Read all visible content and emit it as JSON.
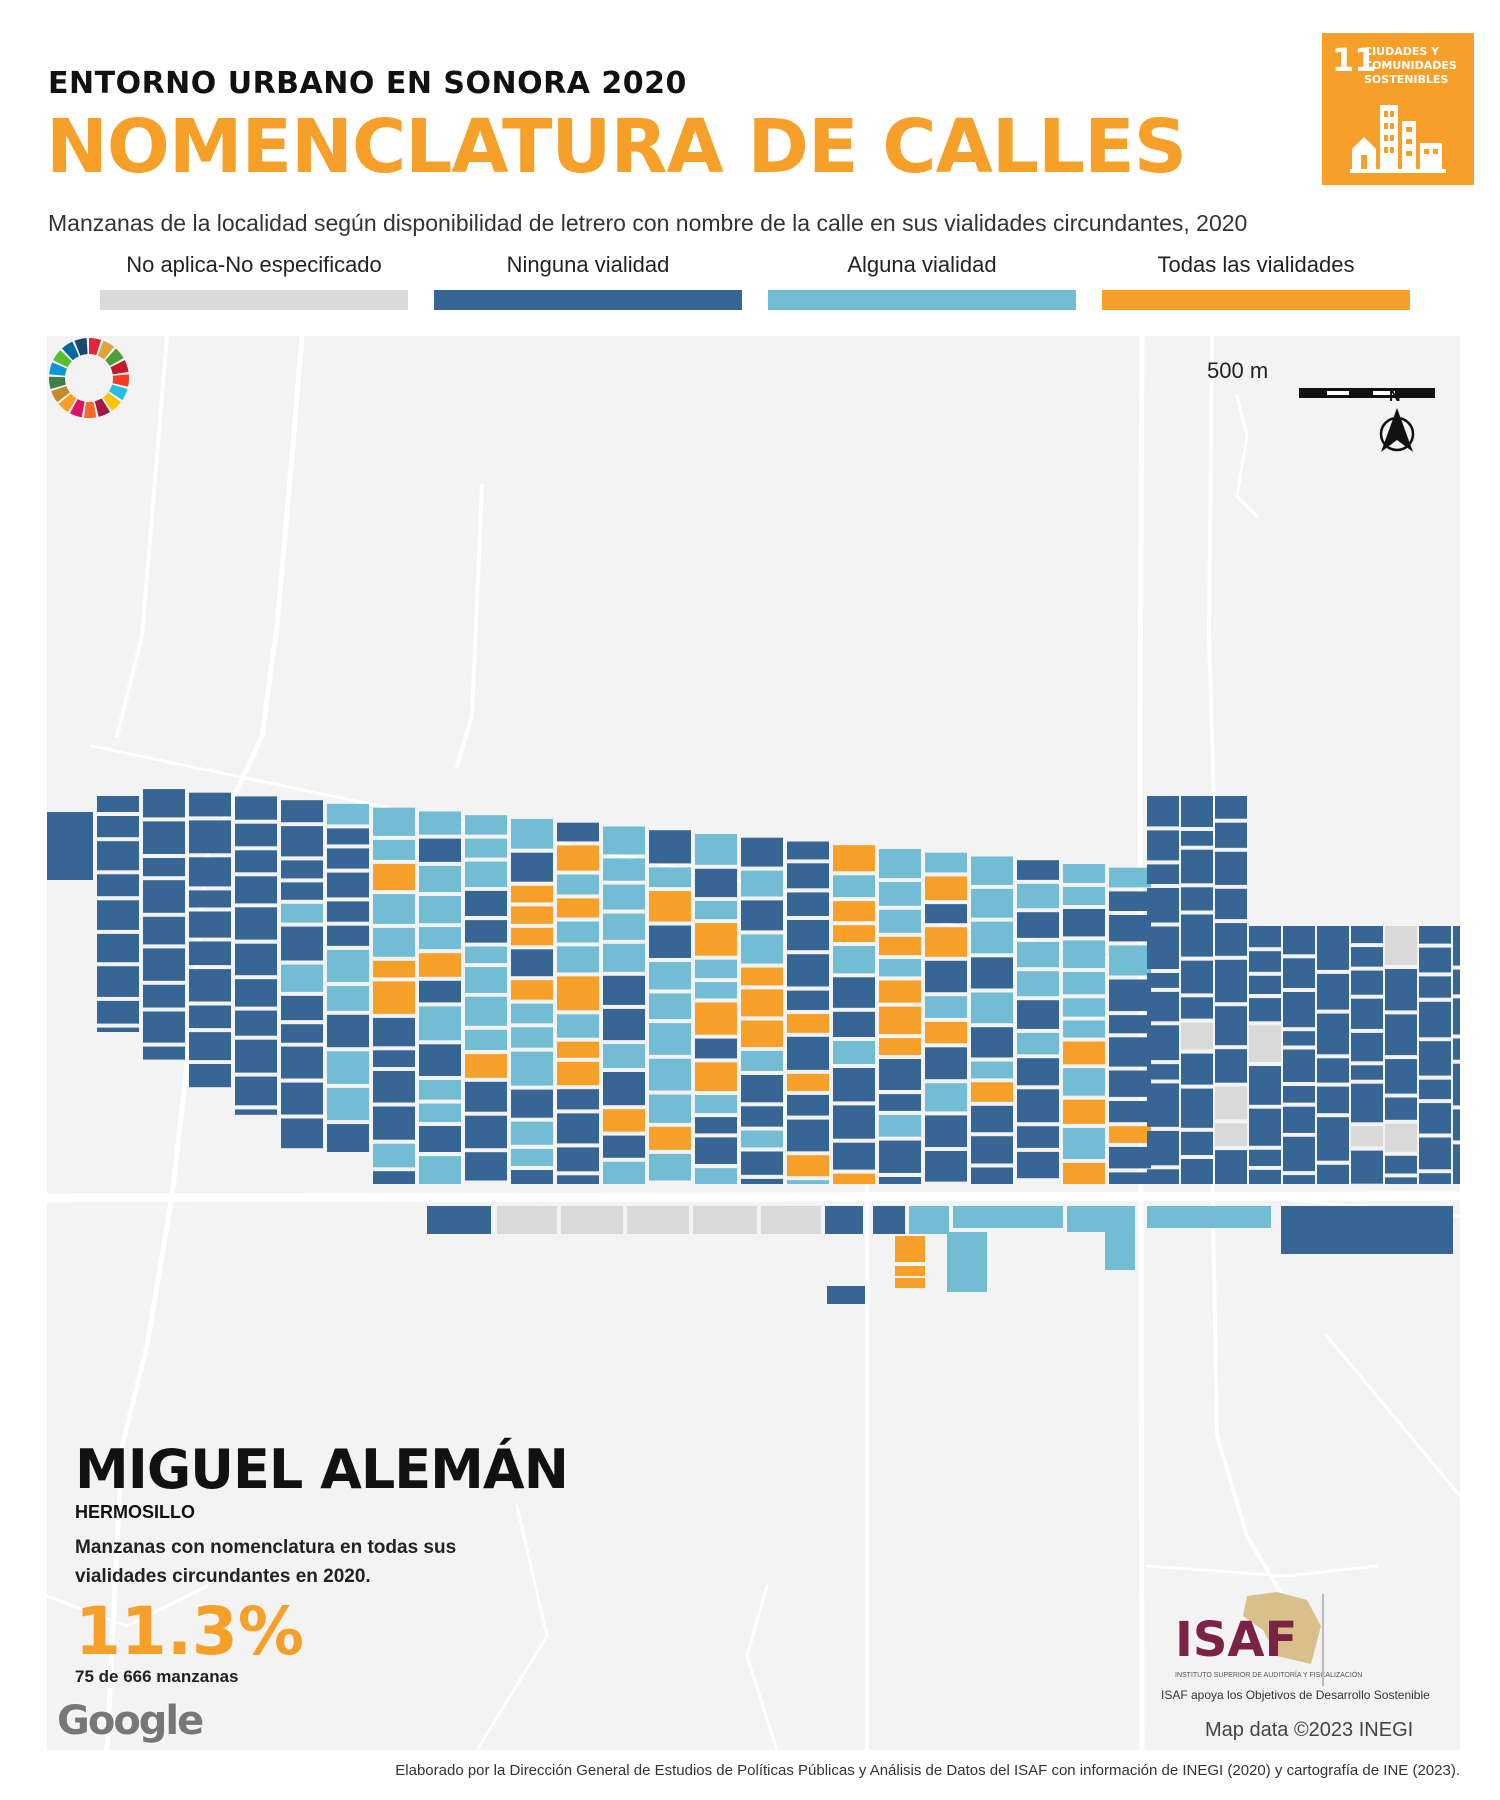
{
  "header": {
    "supertitle": "ENTORNO URBANO EN SONORA 2020",
    "title": "NOMENCLATURA DE CALLES",
    "subtitle": "Manzanas de la localidad según disponibilidad de letrero con nombre de la calle en sus vialidades circundantes, 2020"
  },
  "sdg_badge": {
    "number": "11",
    "text": "CIUDADES Y COMUNIDADES SOSTENIBLES",
    "color": "#f6a02a"
  },
  "legend": [
    {
      "label": "No aplica-No especificado",
      "color": "#d9d9d9"
    },
    {
      "label": "Ninguna vialidad",
      "color": "#376695"
    },
    {
      "label": "Alguna vialidad",
      "color": "#72bcd4"
    },
    {
      "label": "Todas las vialidades",
      "color": "#f6a02a"
    }
  ],
  "map": {
    "scale_label": "500 m",
    "north_label": "N",
    "attribution": "Map data ©2023 INEGI",
    "provider_logo": "Google",
    "colors": {
      "background": "#f3f3f3",
      "road": "#ffffff"
    }
  },
  "locality": {
    "name": "MIGUEL ALEMÁN",
    "municipality": "HERMOSILLO",
    "description": "Manzanas con nomenclatura en todas sus vialidades circundantes en 2020.",
    "percentage": "11.3%",
    "count_text": "75 de 666 manzanas"
  },
  "logos": {
    "isaf": "ISAF",
    "isaf_subtitle": "INSTITUTO SUPERIOR DE AUDITORÍA Y FISCALIZACIÓN",
    "tagline": "ISAF apoya los Objetivos de Desarrollo Sostenible"
  },
  "footer": {
    "credits": "Elaborado por la Dirección General de Estudios de Políticas Públicas y Análisis de Datos del ISAF con información de INEGI (2020) y cartografía de INE (2023)."
  }
}
